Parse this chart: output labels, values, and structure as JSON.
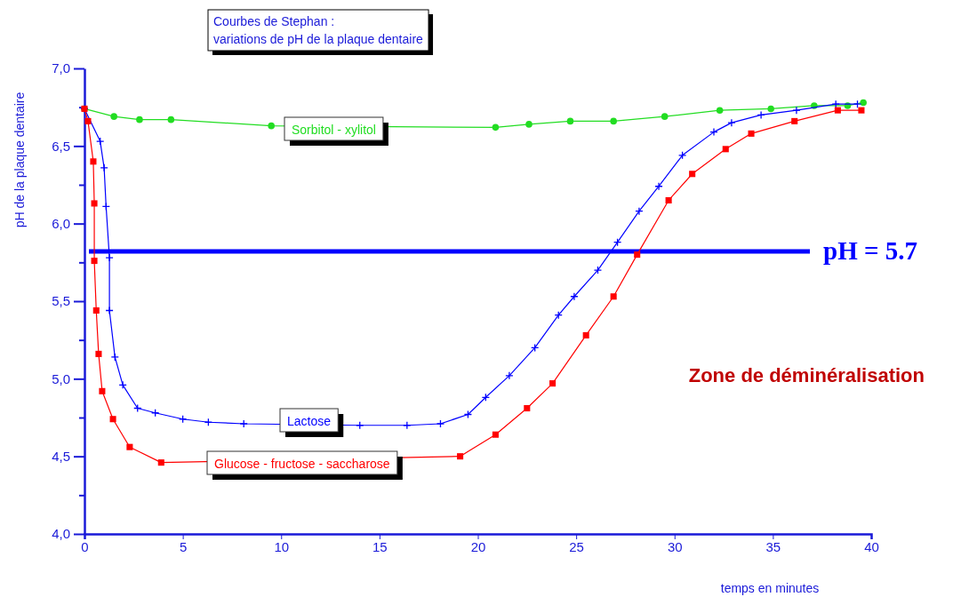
{
  "chart_data": {
    "type": "line",
    "title": "Courbes de Stephan :\nvariations de pH de la plaque dentaire",
    "xlabel": "temps en minutes",
    "ylabel": "pH de la plaque dentaire",
    "xlim": [
      0,
      40
    ],
    "xticks": [
      0,
      5,
      10,
      15,
      20,
      25,
      30,
      35,
      40
    ],
    "ylim": [
      4,
      7
    ],
    "yticks": [
      {
        "value": 4,
        "label": "4,0"
      },
      {
        "value": 4.25,
        "label": null
      },
      {
        "value": 4.5,
        "label": "4,5"
      },
      {
        "value": 4.75,
        "label": null
      },
      {
        "value": 5,
        "label": "5,0"
      },
      {
        "value": 5.25,
        "label": null
      },
      {
        "value": 5.5,
        "label": "5,5"
      },
      {
        "value": 5.75,
        "label": null
      },
      {
        "value": 6,
        "label": "6,0"
      },
      {
        "value": 6.25,
        "label": null
      },
      {
        "value": 6.5,
        "label": "6,5"
      },
      {
        "value": 6.75,
        "label": null
      },
      {
        "value": 7,
        "label": "7,0"
      }
    ],
    "legend": false,
    "grid": false,
    "series": [
      {
        "name": "Sorbitol - xylitol",
        "color": "#22dd22",
        "marker": "circle",
        "x": [
          0,
          1.5,
          2.8,
          4.4,
          9.5,
          20.9,
          22.6,
          24.7,
          26.9,
          29.5,
          32.3,
          34.9,
          37.1,
          38.8,
          39.6
        ],
        "values": [
          6.74,
          6.69,
          6.67,
          6.67,
          6.63,
          6.62,
          6.64,
          6.66,
          6.66,
          6.69,
          6.73,
          6.74,
          6.76,
          6.76,
          6.78
        ]
      },
      {
        "name": "Lactose",
        "color": "#0000ff",
        "marker": "cross",
        "x": [
          0,
          0.8,
          1.0,
          1.1,
          1.27,
          1.27,
          1.55,
          1.95,
          2.7,
          3.6,
          5.0,
          6.3,
          8.1,
          14.0,
          16.4,
          18.1,
          19.5,
          20.4,
          21.6,
          22.9,
          24.1,
          24.9,
          26.1,
          27.1,
          28.2,
          29.2,
          30.4,
          32.0,
          32.9,
          34.4,
          36.2,
          38.2,
          39.3
        ],
        "values": [
          6.74,
          6.53,
          6.36,
          6.11,
          5.78,
          5.44,
          5.14,
          4.96,
          4.81,
          4.78,
          4.74,
          4.72,
          4.71,
          4.7,
          4.7,
          4.71,
          4.77,
          4.88,
          5.02,
          5.2,
          5.41,
          5.53,
          5.7,
          5.88,
          6.08,
          6.24,
          6.44,
          6.59,
          6.65,
          6.7,
          6.73,
          6.77,
          6.77
        ]
      },
      {
        "name": "Glucose - fructose - saccharose",
        "color": "#ff0000",
        "marker": "square",
        "x": [
          0,
          0.18,
          0.45,
          0.5,
          0.5,
          0.6,
          0.72,
          0.9,
          1.45,
          2.3,
          3.9,
          19.1,
          20.9,
          22.5,
          23.8,
          25.5,
          26.9,
          28.1,
          29.7,
          30.9,
          32.6,
          33.9,
          36.1,
          38.3,
          39.5
        ],
        "values": [
          6.74,
          6.66,
          6.4,
          6.13,
          5.76,
          5.44,
          5.16,
          4.92,
          4.74,
          4.56,
          4.46,
          4.5,
          4.64,
          4.81,
          4.97,
          5.28,
          5.53,
          5.8,
          6.15,
          6.32,
          6.48,
          6.58,
          6.66,
          6.73,
          6.73
        ]
      }
    ],
    "ref_lines": [
      {
        "axis": "y",
        "value": 5.82,
        "color": "#0000ff"
      }
    ],
    "annotations": [
      "pH = 5.7",
      "Zone de déminéralisation"
    ]
  }
}
